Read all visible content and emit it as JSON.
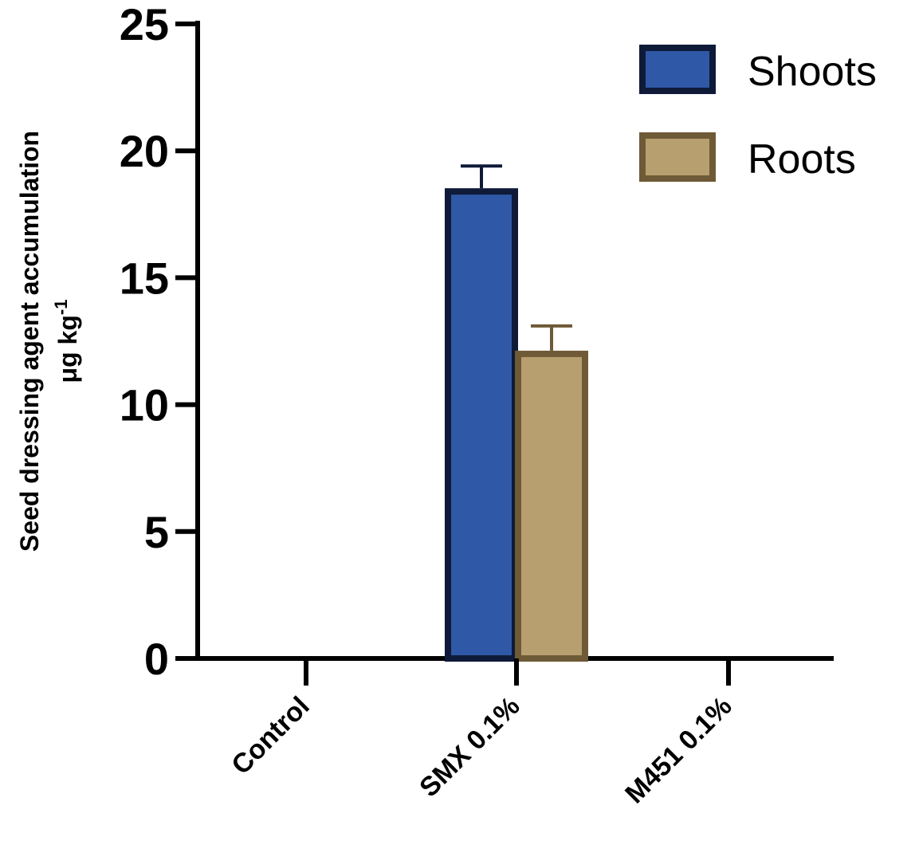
{
  "chart_data": {
    "type": "bar",
    "categories": [
      "Control",
      "SMX 0.1%",
      "M451 0.1%"
    ],
    "series": [
      {
        "name": "Shoots",
        "values": [
          0,
          18.4,
          0
        ],
        "errors": [
          0,
          1.0,
          0
        ],
        "fill": "#2f58a6",
        "stroke": "#0e1a38"
      },
      {
        "name": "Roots",
        "values": [
          0,
          12.0,
          0
        ],
        "errors": [
          0,
          1.1,
          0
        ],
        "fill": "#b89f6f",
        "stroke": "#6e5a36"
      }
    ],
    "ylabel_line1": "Seed dressing agent accumulation",
    "ylabel_line2_main": "μg kg",
    "ylabel_line2_sup": "-1",
    "ylim": [
      0,
      25
    ],
    "yticks": [
      "0",
      "5",
      "10",
      "15",
      "20",
      "25"
    ],
    "legend_position": "top-right",
    "grid": false
  }
}
